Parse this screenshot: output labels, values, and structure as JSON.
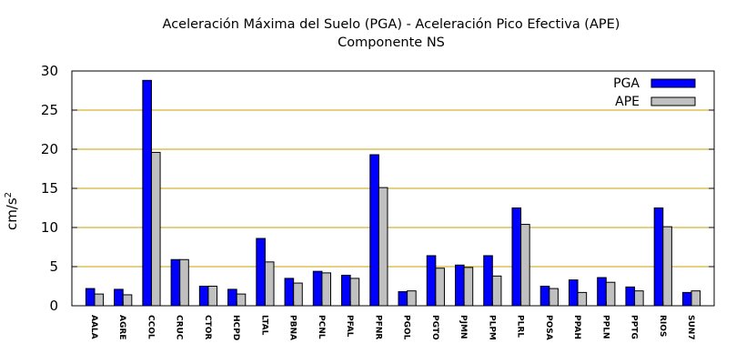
{
  "chart_data": {
    "type": "bar",
    "title": "Aceleración Máxima del Suelo (PGA) -  Aceleración Pico Efectiva (APE)",
    "subtitle": "Componente NS",
    "xlabel": "",
    "ylabel": "cm/s",
    "ylabel_superscript": "2",
    "ylim": [
      0,
      30
    ],
    "yticks": [
      "0",
      "5",
      "10",
      "15",
      "20",
      "25",
      "30"
    ],
    "grid": "horizontal",
    "legend_position": "top-right",
    "categories": [
      "AALA",
      "AGRE",
      "CCOL",
      "CRUC",
      "CTOR",
      "HCPD",
      "LTAL",
      "PBNA",
      "PCNL",
      "PFAL",
      "PFNR",
      "PGOL",
      "PGTO",
      "PJMN",
      "PLPM",
      "PLRL",
      "POSA",
      "PPAH",
      "PPLN",
      "PPTG",
      "RIOS",
      "SUN7"
    ],
    "series": [
      {
        "name": "PGA",
        "color": "#0000ff",
        "values": [
          2.2,
          2.1,
          28.8,
          5.9,
          2.5,
          2.1,
          8.6,
          3.5,
          4.4,
          3.9,
          19.3,
          1.8,
          6.4,
          5.2,
          6.4,
          12.5,
          2.5,
          3.3,
          3.6,
          2.4,
          12.5,
          1.7
        ]
      },
      {
        "name": "APE",
        "color": "#c0c0c0",
        "values": [
          1.5,
          1.4,
          19.6,
          5.9,
          2.5,
          1.5,
          5.6,
          2.9,
          4.2,
          3.5,
          15.1,
          1.9,
          4.8,
          4.9,
          3.8,
          10.4,
          2.2,
          1.7,
          3.0,
          1.9,
          10.1,
          1.9
        ]
      }
    ]
  }
}
